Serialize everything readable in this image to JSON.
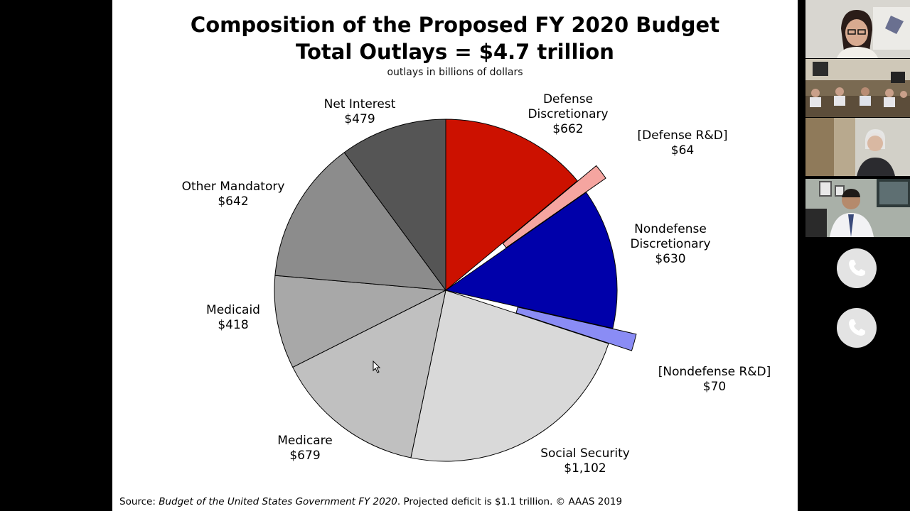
{
  "slide": {
    "title_line1": "Composition of the Proposed FY 2020 Budget",
    "title_line2": "Total Outlays = $4.7 trillion",
    "subtitle": "outlays in billions of dollars",
    "source_prefix": "Source: ",
    "source_italic": "Budget of the United States Government FY 2020",
    "source_suffix": ". Projected deficit  is $1.1 trillion.   © AAAS 2019"
  },
  "chart_data": {
    "type": "pie",
    "title": "Composition of the Proposed FY 2020 Budget",
    "subtitle": "Total Outlays = $4.7 trillion",
    "unit": "outlays in billions of dollars",
    "slices": [
      {
        "name": "Defense Discretionary",
        "label": "$662",
        "value": 662,
        "color": "#cc1100"
      },
      {
        "name": "[Defense R&D]",
        "label": "$64",
        "value": 64,
        "color": "#f5a5a0",
        "exploded": true
      },
      {
        "name": "Nondefense Discretionary",
        "label": "$630",
        "value": 630,
        "color": "#0000aa"
      },
      {
        "name": "[Nondefense R&D]",
        "label": "$70",
        "value": 70,
        "color": "#8a8cf5",
        "exploded": true
      },
      {
        "name": "Social Security",
        "label": "$1,102",
        "value": 1102,
        "color": "#d9d9d9"
      },
      {
        "name": "Medicare",
        "label": "$679",
        "value": 679,
        "color": "#c0c0c0"
      },
      {
        "name": "Medicaid",
        "label": "$418",
        "value": 418,
        "color": "#a8a8a8"
      },
      {
        "name": "Other Mandatory",
        "label": "$642",
        "value": 642,
        "color": "#8c8c8c"
      },
      {
        "name": "Net Interest",
        "label": "$479",
        "value": 479,
        "color": "#555555"
      }
    ]
  },
  "labels": {
    "defense_discretionary": [
      "Defense",
      "Discretionary",
      "$662"
    ],
    "defense_rd": [
      "[Defense R&D]",
      "$64"
    ],
    "nondefense_discretionary": [
      "Nondefense",
      "Discretionary",
      "$630"
    ],
    "nondefense_rd": [
      "[Nondefense R&D]",
      "$70"
    ],
    "social_security": [
      "Social Security",
      "$1,102"
    ],
    "medicare": [
      "Medicare",
      "$679"
    ],
    "medicaid": [
      "Medicaid",
      "$418"
    ],
    "other_mandatory": [
      "Other Mandatory",
      "$642"
    ],
    "net_interest": [
      "Net Interest",
      "$479"
    ]
  },
  "video_rail": {
    "participants": [
      "participant-1",
      "participant-2",
      "participant-3",
      "participant-4"
    ],
    "call_buttons": [
      "phone-icon",
      "phone-icon"
    ]
  }
}
